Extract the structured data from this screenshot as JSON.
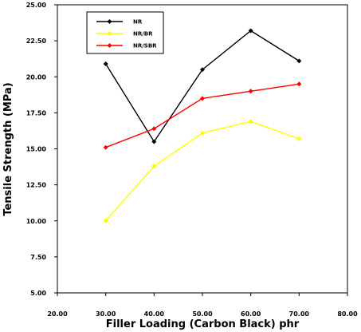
{
  "chart_data": {
    "type": "line",
    "xlabel": "Filler Loading (Carbon Black) phr",
    "ylabel": "Tensile Strength (MPa)",
    "xlim": [
      20,
      80
    ],
    "ylim": [
      5,
      25
    ],
    "x_ticks": [
      "20.00",
      "30.00",
      "40.00",
      "50.00",
      "60.00",
      "70.00",
      "80.00"
    ],
    "y_ticks": [
      "5.00",
      "7.50",
      "10.00",
      "12.50",
      "15.00",
      "17.50",
      "20.00",
      "22.50",
      "25.00"
    ],
    "grid": false,
    "legend_position": "top-left",
    "x": [
      30,
      40,
      50,
      60,
      70
    ],
    "series": [
      {
        "name": "NR",
        "color": "#000000",
        "values": [
          20.9,
          15.5,
          20.5,
          23.2,
          21.1
        ]
      },
      {
        "name": "NR/BR",
        "color": "#ffff00",
        "values": [
          10.0,
          13.8,
          16.1,
          16.9,
          15.7
        ]
      },
      {
        "name": "NR/SBR",
        "color": "#ff0000",
        "values": [
          15.1,
          16.4,
          18.5,
          19.0,
          19.5
        ]
      }
    ]
  }
}
